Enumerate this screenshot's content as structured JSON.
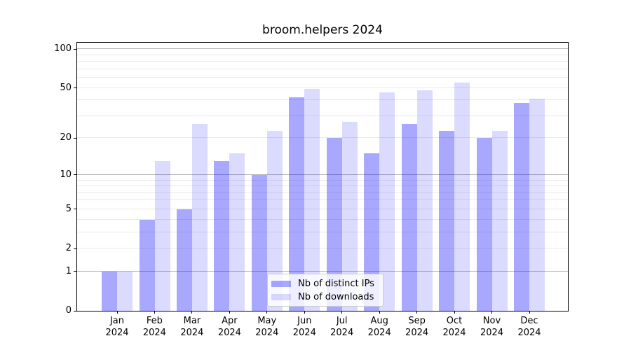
{
  "chart_data": {
    "type": "bar",
    "title": "broom.helpers 2024",
    "x_categories": [
      "Jan",
      "Feb",
      "Mar",
      "Apr",
      "May",
      "Jun",
      "Jul",
      "Aug",
      "Sep",
      "Oct",
      "Nov",
      "Dec"
    ],
    "x_year_label": "2024",
    "series": [
      {
        "name": "Nb of distinct IPs",
        "fill": "rgba(0,0,255,0.34)",
        "approx_hex": "#a8a8fa",
        "values": [
          1,
          4,
          5,
          13,
          10,
          42,
          20,
          15,
          26,
          23,
          20,
          38
        ]
      },
      {
        "name": "Nb of downloads",
        "fill": "rgba(0,0,255,0.14)",
        "approx_hex": "#dcdcfc",
        "values": [
          1,
          13,
          26,
          15,
          23,
          49,
          27,
          46,
          48,
          55,
          23,
          41
        ]
      }
    ],
    "y_axis": {
      "scale": "log1p",
      "ticks": [
        0,
        1,
        2,
        5,
        10,
        20,
        50,
        100
      ],
      "top_value": 112
    },
    "grid": {
      "major_values": [
        1,
        10,
        100
      ],
      "minor_values": [
        2,
        3,
        4,
        5,
        6,
        7,
        8,
        9,
        20,
        30,
        40,
        50,
        60,
        70,
        80,
        90
      ],
      "major_color": "#b3b3b3",
      "minor_color": "#e9e9e9"
    },
    "legend_position": "bottom-center",
    "colors": {
      "axis": "#000000",
      "text": "#000000",
      "background": "#ffffff"
    }
  }
}
